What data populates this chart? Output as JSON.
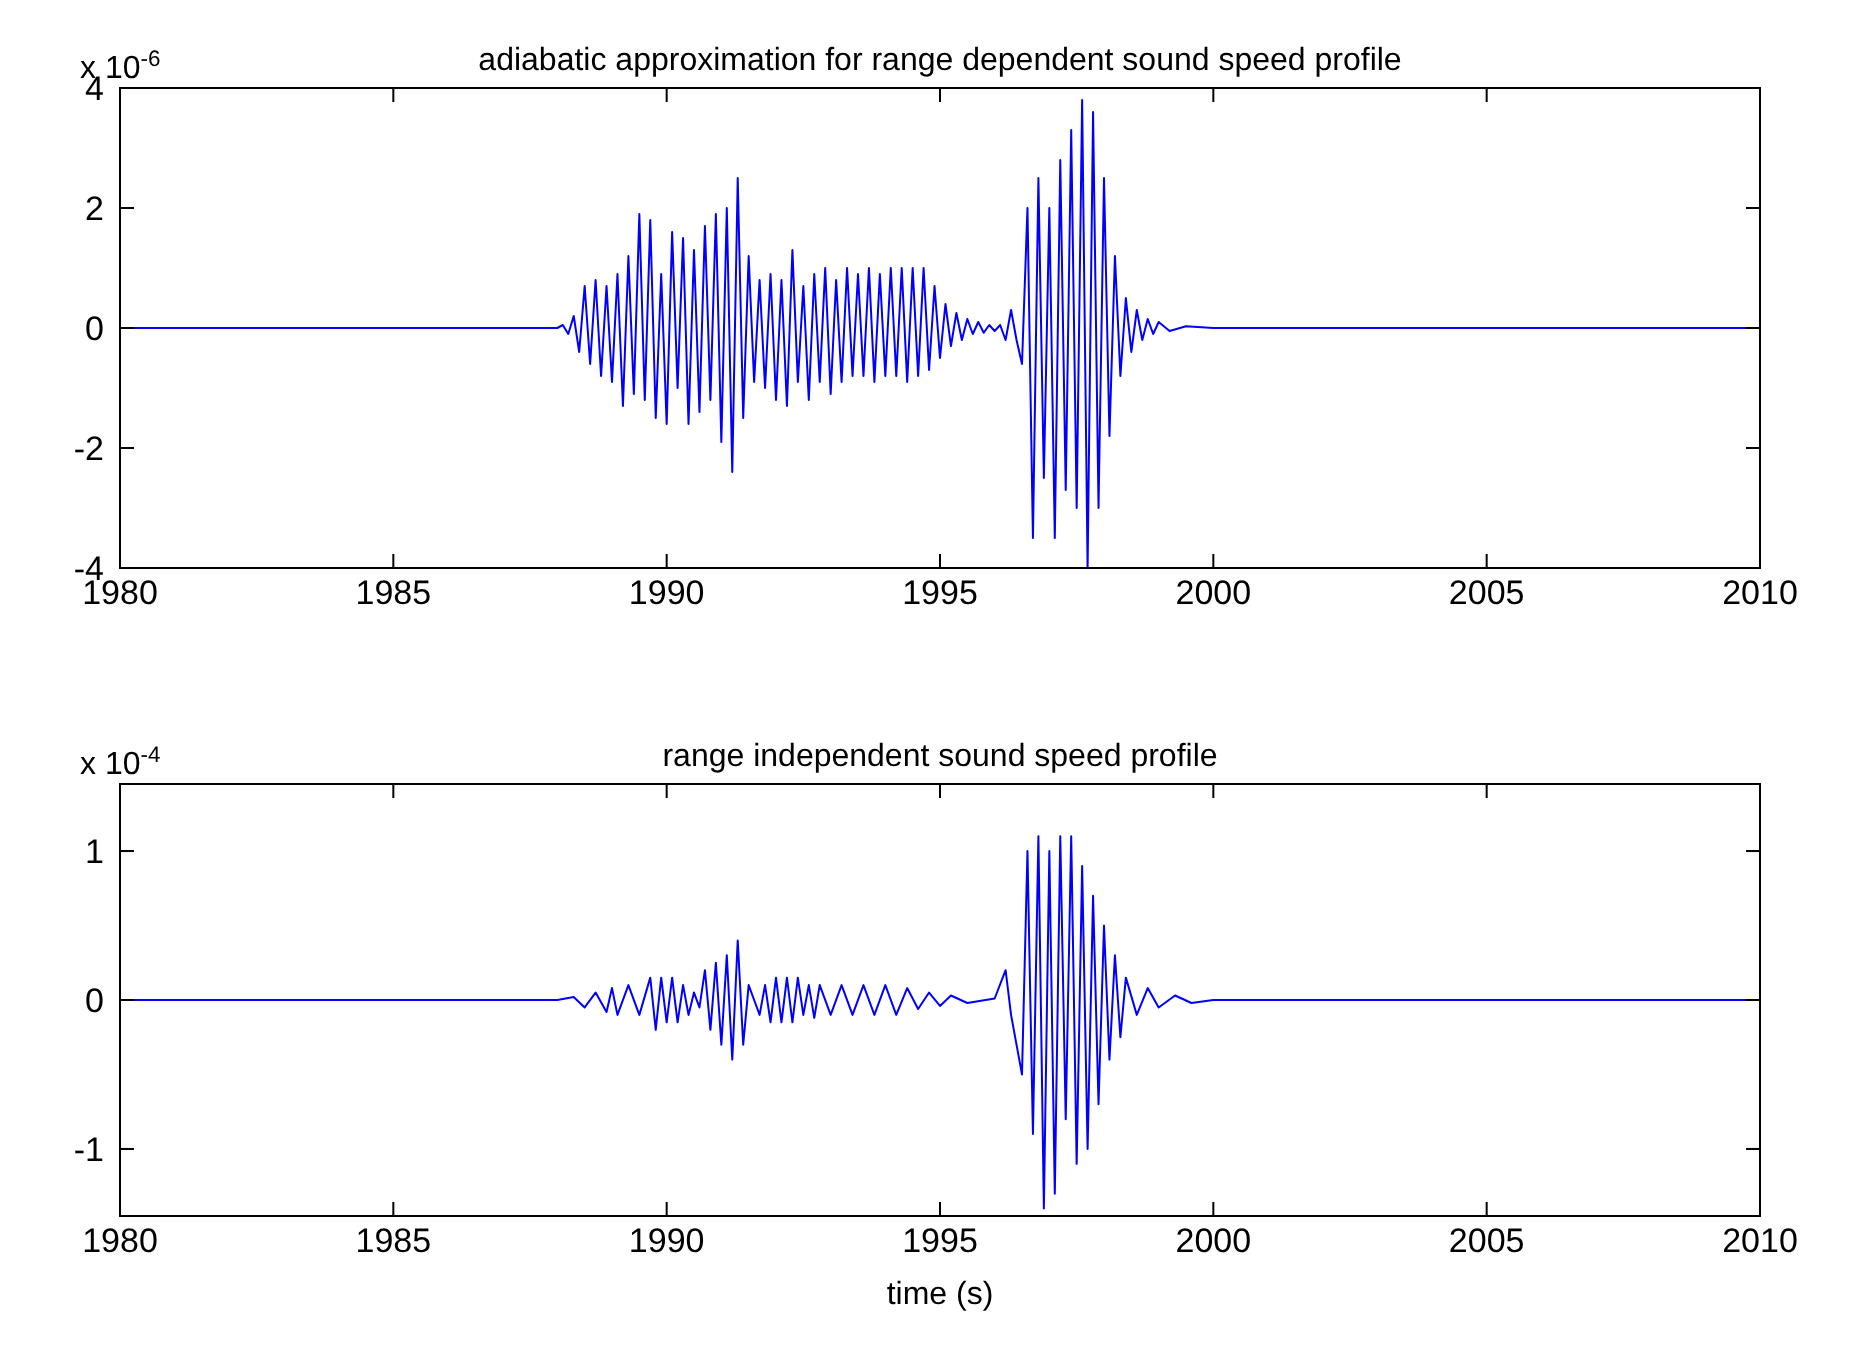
{
  "chart_data": [
    {
      "type": "line",
      "title": "adiabatic approximation for range dependent sound speed profile",
      "annotations": [
        "x 10$^{-6}$"
      ],
      "grid": false,
      "line_style": "solid",
      "xlim": [
        1980,
        2010
      ],
      "xticks": [
        1980,
        1985,
        1990,
        1995,
        2000,
        2005,
        2010
      ],
      "ylim": [
        -4,
        4
      ],
      "yticks": [
        -4,
        -2,
        0,
        2,
        4
      ],
      "series": [
        {
          "color": "#0000ff",
          "x": [
            1980,
            1988.0,
            1988.1,
            1988.2,
            1988.3,
            1988.4,
            1988.5,
            1988.6,
            1988.7,
            1988.8,
            1988.9,
            1989.0,
            1989.1,
            1989.2,
            1989.3,
            1989.4,
            1989.5,
            1989.6,
            1989.7,
            1989.8,
            1989.9,
            1990.0,
            1990.1,
            1990.2,
            1990.3,
            1990.4,
            1990.5,
            1990.6,
            1990.7,
            1990.8,
            1990.9,
            1991.0,
            1991.1,
            1991.2,
            1991.3,
            1991.4,
            1991.5,
            1991.6,
            1991.7,
            1991.8,
            1991.9,
            1992.0,
            1992.1,
            1992.2,
            1992.3,
            1992.4,
            1992.5,
            1992.6,
            1992.7,
            1992.8,
            1992.9,
            1993.0,
            1993.1,
            1993.2,
            1993.3,
            1993.4,
            1993.5,
            1993.6,
            1993.7,
            1993.8,
            1993.9,
            1994.0,
            1994.1,
            1994.2,
            1994.3,
            1994.4,
            1994.5,
            1994.6,
            1994.7,
            1994.8,
            1994.9,
            1995.0,
            1995.1,
            1995.2,
            1995.3,
            1995.4,
            1995.5,
            1995.6,
            1995.7,
            1995.8,
            1995.9,
            1996.0,
            1996.1,
            1996.2,
            1996.3,
            1996.4,
            1996.5,
            1996.6,
            1996.7,
            1996.8,
            1996.9,
            1997.0,
            1997.1,
            1997.2,
            1997.3,
            1997.4,
            1997.5,
            1997.6,
            1997.7,
            1997.8,
            1997.9,
            1998.0,
            1998.1,
            1998.2,
            1998.3,
            1998.4,
            1998.5,
            1998.6,
            1998.7,
            1998.8,
            1998.9,
            1999.0,
            1999.2,
            1999.5,
            2000.0,
            2010
          ],
          "values": [
            0,
            0,
            0.05,
            -0.1,
            0.2,
            -0.4,
            0.7,
            -0.6,
            0.8,
            -0.8,
            0.7,
            -0.9,
            0.9,
            -1.3,
            1.2,
            -1.1,
            1.9,
            -1.2,
            1.8,
            -1.5,
            0.9,
            -1.6,
            1.6,
            -1.0,
            1.5,
            -1.6,
            1.3,
            -1.4,
            1.7,
            -1.2,
            1.9,
            -1.9,
            2.0,
            -2.4,
            2.5,
            -1.5,
            1.2,
            -0.9,
            0.8,
            -1.0,
            0.9,
            -1.2,
            0.8,
            -1.3,
            1.3,
            -0.9,
            0.7,
            -1.2,
            0.9,
            -0.9,
            1.0,
            -1.1,
            0.8,
            -0.9,
            1.0,
            -0.8,
            0.9,
            -0.8,
            1.0,
            -0.9,
            0.9,
            -0.8,
            1.0,
            -0.8,
            1.0,
            -0.9,
            1.0,
            -0.8,
            1.0,
            -0.7,
            0.7,
            -0.5,
            0.4,
            -0.3,
            0.25,
            -0.2,
            0.15,
            -0.1,
            0.1,
            -0.08,
            0.05,
            -0.05,
            0.05,
            -0.2,
            0.3,
            -0.2,
            -0.6,
            2.0,
            -3.5,
            2.5,
            -2.5,
            2.0,
            -3.5,
            2.8,
            -2.7,
            3.3,
            -3.0,
            3.8,
            -4.0,
            3.6,
            -3.0,
            2.5,
            -1.8,
            1.2,
            -0.8,
            0.5,
            -0.4,
            0.3,
            -0.2,
            0.15,
            -0.1,
            0.1,
            -0.05,
            0.03,
            0,
            0
          ]
        }
      ]
    },
    {
      "type": "line",
      "title": "range independent sound speed profile",
      "xlabel": "time (s)",
      "annotations": [
        "x 10$^{-4}$"
      ],
      "grid": false,
      "line_style": "solid",
      "xlim": [
        1980,
        2010
      ],
      "xticks": [
        1980,
        1985,
        1990,
        1995,
        2000,
        2005,
        2010
      ],
      "ylim": [
        -1.45,
        1.45
      ],
      "yticks": [
        -1,
        0,
        1
      ],
      "series": [
        {
          "color": "#0000ff",
          "x": [
            1980,
            1988.0,
            1988.3,
            1988.5,
            1988.7,
            1988.9,
            1989.0,
            1989.1,
            1989.3,
            1989.5,
            1989.7,
            1989.8,
            1989.9,
            1990.0,
            1990.1,
            1990.2,
            1990.3,
            1990.4,
            1990.5,
            1990.6,
            1990.7,
            1990.8,
            1990.9,
            1991.0,
            1991.1,
            1991.2,
            1991.3,
            1991.4,
            1991.5,
            1991.6,
            1991.7,
            1991.8,
            1991.9,
            1992.0,
            1992.1,
            1992.2,
            1992.3,
            1992.4,
            1992.5,
            1992.6,
            1992.7,
            1992.8,
            1993.0,
            1993.2,
            1993.4,
            1993.6,
            1993.8,
            1994.0,
            1994.2,
            1994.4,
            1994.6,
            1994.8,
            1995.0,
            1995.2,
            1995.5,
            1996.0,
            1996.2,
            1996.3,
            1996.5,
            1996.6,
            1996.7,
            1996.8,
            1996.9,
            1997.0,
            1997.1,
            1997.2,
            1997.3,
            1997.4,
            1997.5,
            1997.6,
            1997.7,
            1997.8,
            1997.9,
            1998.0,
            1998.1,
            1998.2,
            1998.3,
            1998.4,
            1998.6,
            1998.8,
            1999.0,
            1999.3,
            1999.6,
            2000.0,
            2010
          ],
          "values": [
            0,
            0,
            0.02,
            -0.05,
            0.05,
            -0.08,
            0.08,
            -0.1,
            0.1,
            -0.1,
            0.15,
            -0.2,
            0.15,
            -0.15,
            0.15,
            -0.15,
            0.1,
            -0.1,
            0.05,
            -0.05,
            0.2,
            -0.2,
            0.25,
            -0.3,
            0.3,
            -0.4,
            0.4,
            -0.3,
            0.1,
            0,
            -0.1,
            0.1,
            -0.15,
            0.15,
            -0.15,
            0.15,
            -0.15,
            0.15,
            -0.1,
            0.1,
            -0.12,
            0.1,
            -0.1,
            0.1,
            -0.1,
            0.1,
            -0.1,
            0.1,
            -0.1,
            0.08,
            -0.06,
            0.05,
            -0.04,
            0.03,
            -0.02,
            0.01,
            0.2,
            -0.1,
            -0.5,
            1.0,
            -0.9,
            1.1,
            -1.4,
            1.0,
            -1.3,
            1.1,
            -0.8,
            1.1,
            -1.1,
            0.9,
            -1.0,
            0.7,
            -0.7,
            0.5,
            -0.4,
            0.3,
            -0.25,
            0.15,
            -0.1,
            0.08,
            -0.05,
            0.03,
            -0.02,
            0,
            0
          ]
        }
      ]
    }
  ]
}
